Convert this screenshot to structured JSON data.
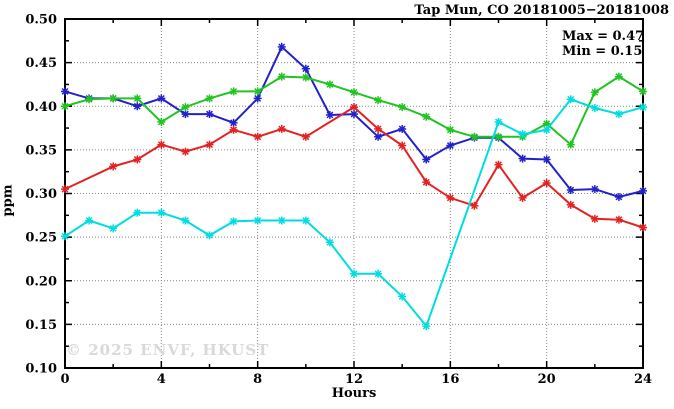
{
  "chart_data": {
    "type": "line",
    "title": "Tap Mun, CO 20181005−20181008",
    "xlabel": "Hours",
    "ylabel": "ppm",
    "watermark": "© 2025 ENVF, HKUST",
    "annotations": {
      "max": "Max = 0.47",
      "min": "Min = 0.15"
    },
    "xlim": [
      0,
      24
    ],
    "ylim": [
      0.1,
      0.5
    ],
    "x_tick_labels": [
      "0",
      "4",
      "8",
      "12",
      "16",
      "20",
      "24"
    ],
    "y_tick_labels": [
      "0.10",
      "0.15",
      "0.20",
      "0.25",
      "0.30",
      "0.35",
      "0.40",
      "0.45",
      "0.50"
    ],
    "x_minor_step": 2,
    "y_minor_step": 0.025,
    "grid": true,
    "legend": "none",
    "x": [
      0,
      1,
      2,
      3,
      4,
      5,
      6,
      7,
      8,
      9,
      10,
      11,
      12,
      13,
      14,
      15,
      16,
      17,
      18,
      19,
      20,
      21,
      22,
      23,
      24
    ],
    "series": [
      {
        "name": "series-blue",
        "color": "#2222cc",
        "values": [
          0.417,
          0.409,
          0.409,
          0.4,
          0.409,
          0.391,
          0.391,
          0.381,
          0.409,
          0.468,
          0.443,
          0.39,
          0.391,
          0.365,
          0.374,
          0.339,
          0.355,
          0.364,
          0.364,
          0.34,
          0.339,
          0.304,
          0.305,
          0.296,
          0.303
        ]
      },
      {
        "name": "series-green",
        "color": "#22c422",
        "values": [
          0.4,
          0.408,
          0.409,
          0.409,
          0.382,
          0.399,
          0.409,
          0.417,
          0.417,
          0.434,
          0.433,
          0.425,
          0.416,
          0.407,
          0.399,
          0.388,
          0.373,
          0.365,
          0.365,
          0.365,
          0.38,
          0.356,
          0.416,
          0.434,
          0.417
        ]
      },
      {
        "name": "series-red",
        "color": "#e32222",
        "values": [
          0.305,
          null,
          0.331,
          0.339,
          0.356,
          0.348,
          0.356,
          0.373,
          0.365,
          0.374,
          0.365,
          null,
          0.399,
          0.374,
          0.355,
          0.313,
          0.295,
          0.286,
          0.333,
          0.295,
          0.312,
          0.287,
          0.271,
          0.27,
          0.261
        ]
      },
      {
        "name": "series-cyan",
        "color": "#00dde0",
        "values": [
          0.251,
          0.269,
          0.26,
          0.278,
          0.278,
          0.269,
          0.252,
          0.268,
          0.269,
          0.269,
          0.269,
          0.244,
          0.208,
          0.208,
          0.182,
          0.148,
          null,
          null,
          0.382,
          0.368,
          0.373,
          0.408,
          0.398,
          0.391,
          0.399
        ]
      }
    ]
  }
}
